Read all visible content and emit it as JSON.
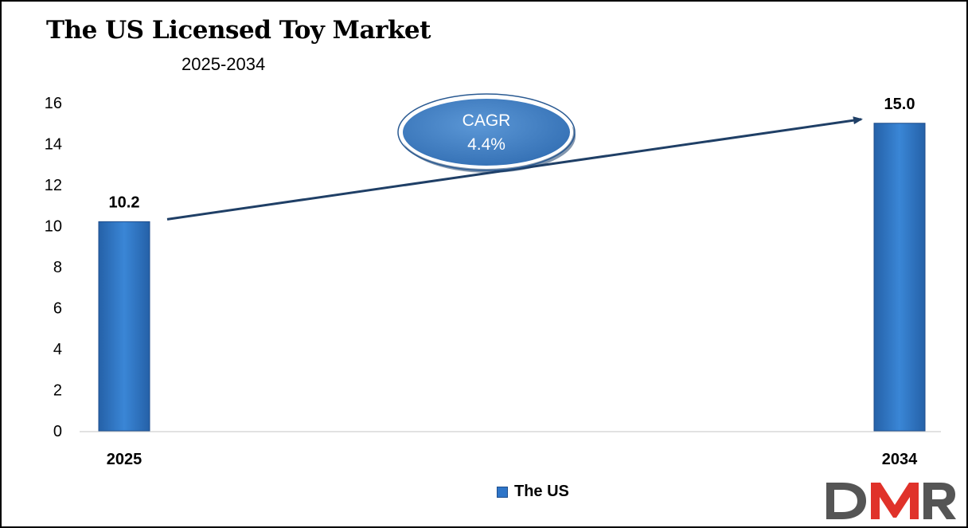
{
  "chart_data": {
    "type": "bar",
    "title": "The US Licensed Toy Market",
    "subtitle": "2025-2034",
    "categories": [
      "2025",
      "2034"
    ],
    "series": [
      {
        "name": "The US",
        "values": [
          10.2,
          15.0
        ]
      }
    ],
    "data_labels": [
      "10.2",
      "15.0"
    ],
    "yticks": [
      "0",
      "2",
      "4",
      "6",
      "8",
      "10",
      "12",
      "14",
      "16"
    ],
    "ylim": [
      0,
      16
    ],
    "grid": false,
    "legend": "bottom-center",
    "annotation": {
      "label": "CAGR",
      "value": "4.4%"
    },
    "colors": {
      "bar": "#2e75c8",
      "bar_edge": "#1f4e8c",
      "arrow": "#1f3f66",
      "cagr_fill": "#3f7fc4"
    }
  },
  "logo": {
    "text": "DMR",
    "colors": {
      "d": "#555555",
      "m": "#e0322a",
      "r": "#555555"
    }
  }
}
